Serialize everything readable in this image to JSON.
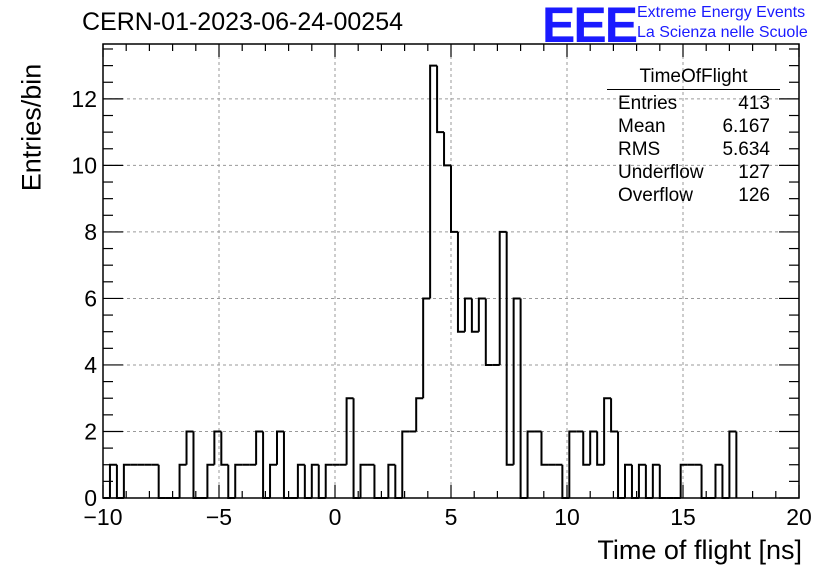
{
  "header": {
    "title": "CERN-01-2023-06-24-00254",
    "logo_text": "EEE",
    "logo_line1": "Extreme Energy Events",
    "logo_line2": "La Scienza nelle Scuole"
  },
  "stats_box": {
    "title": "TimeOfFlight",
    "rows": [
      {
        "label": "Entries",
        "value": "413"
      },
      {
        "label": "Mean",
        "value": "6.167"
      },
      {
        "label": "RMS",
        "value": "5.634"
      },
      {
        "label": "Underflow",
        "value": "127"
      },
      {
        "label": "Overflow",
        "value": "126"
      }
    ]
  },
  "chart_data": {
    "type": "bar",
    "style": "step-histogram",
    "title": "CERN-01-2023-06-24-00254",
    "xlabel": "Time of flight [ns]",
    "ylabel": "Entries/bin",
    "xlim": [
      -10,
      20
    ],
    "ylim": [
      0,
      13.65
    ],
    "x_ticks": [
      -10,
      -5,
      0,
      5,
      10,
      15,
      20
    ],
    "x_tick_labels": [
      "−10",
      "−5",
      "0",
      "5",
      "10",
      "15",
      "20"
    ],
    "y_ticks": [
      0,
      2,
      4,
      6,
      8,
      10,
      12
    ],
    "y_tick_labels": [
      "0",
      "2",
      "4",
      "6",
      "8",
      "10",
      "12"
    ],
    "grid": true,
    "bin_width": 0.3,
    "x_start": -10,
    "values": [
      0,
      1,
      0,
      1,
      1,
      1,
      1,
      1,
      0,
      0,
      0,
      1,
      2,
      0,
      0,
      1,
      2,
      1,
      0,
      1,
      1,
      1,
      2,
      0,
      1,
      2,
      0,
      0,
      1,
      0,
      1,
      0,
      1,
      1,
      1,
      3,
      0,
      1,
      1,
      0,
      0,
      1,
      0,
      2,
      2,
      3,
      6,
      13,
      11,
      10,
      8,
      5,
      6,
      5,
      6,
      4,
      4,
      8,
      1,
      6,
      0,
      2,
      2,
      1,
      1,
      1,
      0,
      2,
      2,
      1,
      2,
      1,
      3,
      2,
      0,
      1,
      0,
      1,
      0,
      1,
      0,
      0,
      0,
      1,
      1,
      1,
      0,
      0,
      1,
      0,
      2
    ]
  }
}
